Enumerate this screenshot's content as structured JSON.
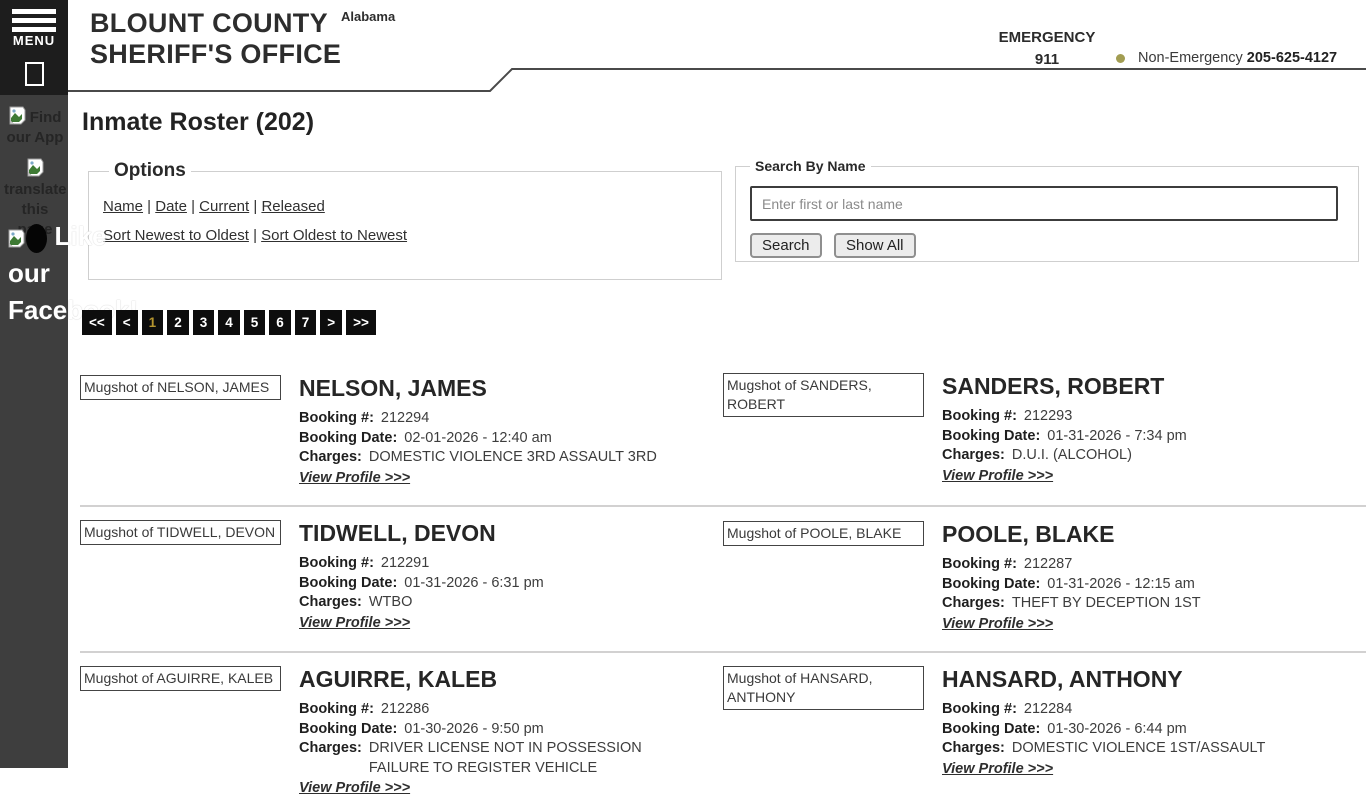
{
  "sidebar": {
    "menu_label": "MENU",
    "find_app": "Find our App",
    "translate": "translate this page",
    "facebook": "Like our Facebook!"
  },
  "header": {
    "title_line1": "BLOUNT COUNTY",
    "title_line2": "SHERIFF'S OFFICE",
    "state": "Alabama",
    "emergency_label": "EMERGENCY",
    "emergency_number": "911",
    "non_emergency_label": "Non-Emergency",
    "non_emergency_number": "205-625-4127"
  },
  "page": {
    "heading": "Inmate Roster (202)"
  },
  "options": {
    "legend": "Options",
    "filters": [
      "Name",
      "Date",
      "Current",
      "Released"
    ],
    "sorts": [
      "Sort Newest to Oldest",
      "Sort Oldest to Newest"
    ]
  },
  "search": {
    "legend": "Search By Name",
    "placeholder": "Enter first or last name",
    "search_button": "Search",
    "show_all_button": "Show All"
  },
  "pagination": {
    "items": [
      "<<",
      "<",
      "1",
      "2",
      "3",
      "4",
      "5",
      "6",
      "7",
      ">",
      ">>"
    ],
    "active": "1"
  },
  "labels": {
    "booking_no": "Booking #:",
    "booking_date": "Booking Date:",
    "charges": "Charges:",
    "view_profile": "View Profile >>>"
  },
  "inmates": [
    {
      "name": "NELSON, JAMES",
      "mugshot_alt": "Mugshot of NELSON, JAMES",
      "booking_no": "212294",
      "booking_date": "02-01-2026 - 12:40 am",
      "charges": [
        "DOMESTIC VIOLENCE 3RD ASSAULT 3RD"
      ]
    },
    {
      "name": "SANDERS, ROBERT",
      "mugshot_alt": "Mugshot of SANDERS, ROBERT",
      "booking_no": "212293",
      "booking_date": "01-31-2026 - 7:34 pm",
      "charges": [
        "D.U.I. (ALCOHOL)"
      ]
    },
    {
      "name": "TIDWELL, DEVON",
      "mugshot_alt": "Mugshot of TIDWELL, DEVON",
      "booking_no": "212291",
      "booking_date": "01-31-2026 - 6:31 pm",
      "charges": [
        "WTBO"
      ]
    },
    {
      "name": "POOLE, BLAKE",
      "mugshot_alt": "Mugshot of POOLE, BLAKE",
      "booking_no": "212287",
      "booking_date": "01-31-2026 - 12:15 am",
      "charges": [
        "THEFT BY DECEPTION 1ST"
      ]
    },
    {
      "name": "AGUIRRE, KALEB",
      "mugshot_alt": "Mugshot of AGUIRRE, KALEB",
      "booking_no": "212286",
      "booking_date": "01-30-2026 - 9:50 pm",
      "charges": [
        "DRIVER LICENSE NOT IN POSSESSION",
        "FAILURE TO REGISTER VEHICLE"
      ]
    },
    {
      "name": "HANSARD, ANTHONY",
      "mugshot_alt": "Mugshot of HANSARD, ANTHONY",
      "booking_no": "212284",
      "booking_date": "01-30-2026 - 6:44 pm",
      "charges": [
        "DOMESTIC VIOLENCE 1ST/ASSAULT"
      ]
    }
  ],
  "colors": {
    "sidebar": "#3e3e3e",
    "menu_box": "#1d1d1d",
    "pagination_bg": "#0d0d0d",
    "pagination_active": "#b5952f",
    "bullet": "#a29d52",
    "header_line": "#4a4a4a"
  }
}
